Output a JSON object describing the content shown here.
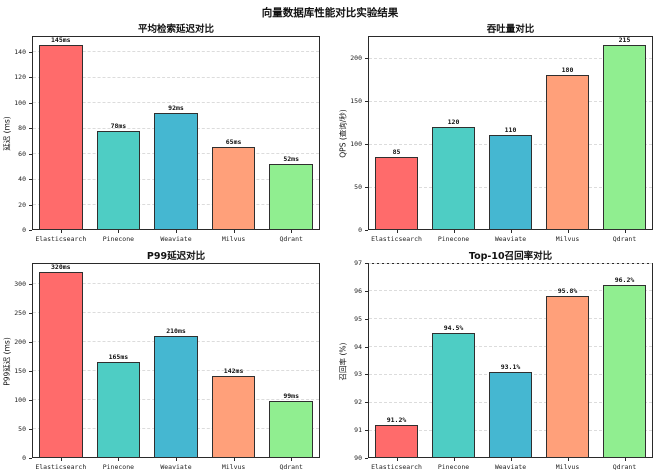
{
  "figure_title": "向量数据库性能对比实验结果",
  "palette": {
    "elasticsearch": "#FF6B6B",
    "pinecone": "#4ECDC4",
    "weaviate": "#45B7D1",
    "milvus": "#FFA07A",
    "qdrant": "#90EE90",
    "bar_edge": "#2f2f2f",
    "grid": "#dcdcdc"
  },
  "chart_data": [
    {
      "type": "bar",
      "title": "平均检索延迟对比",
      "ylabel": "延迟 (ms)",
      "categories": [
        "Elasticsearch",
        "Pinecone",
        "Weaviate",
        "Milvus",
        "Qdrant"
      ],
      "values": [
        145,
        78,
        92,
        65,
        52
      ],
      "value_labels": [
        "145ms",
        "78ms",
        "92ms",
        "65ms",
        "52ms"
      ],
      "bar_colors": [
        "#FF6B6B",
        "#4ECDC4",
        "#45B7D1",
        "#FFA07A",
        "#90EE90"
      ],
      "ylim": [
        0,
        152.25
      ],
      "yticks": [
        0,
        20,
        40,
        60,
        80,
        100,
        120,
        140
      ],
      "grid": "horizontal-dashed",
      "legend": "none"
    },
    {
      "type": "bar",
      "title": "吞吐量对比",
      "ylabel": "QPS (查询/秒)",
      "categories": [
        "Elasticsearch",
        "Pinecone",
        "Weaviate",
        "Milvus",
        "Qdrant"
      ],
      "values": [
        85,
        120,
        110,
        180,
        215
      ],
      "value_labels": [
        "85",
        "120",
        "110",
        "180",
        "215"
      ],
      "bar_colors": [
        "#FF6B6B",
        "#4ECDC4",
        "#45B7D1",
        "#FFA07A",
        "#90EE90"
      ],
      "ylim": [
        0,
        225.75
      ],
      "yticks": [
        0,
        50,
        100,
        150,
        200
      ],
      "grid": "horizontal-dashed",
      "legend": "none"
    },
    {
      "type": "bar",
      "title": "P99延迟对比",
      "ylabel": "P99延迟 (ms)",
      "categories": [
        "Elasticsearch",
        "Pinecone",
        "Weaviate",
        "Milvus",
        "Qdrant"
      ],
      "values": [
        320,
        165,
        210,
        142,
        99
      ],
      "value_labels": [
        "320ms",
        "165ms",
        "210ms",
        "142ms",
        "99ms"
      ],
      "bar_colors": [
        "#FF6B6B",
        "#4ECDC4",
        "#45B7D1",
        "#FFA07A",
        "#90EE90"
      ],
      "ylim": [
        0,
        336
      ],
      "yticks": [
        0,
        50,
        100,
        150,
        200,
        250,
        300
      ],
      "grid": "horizontal-dashed",
      "legend": "none"
    },
    {
      "type": "bar",
      "title": "Top-10召回率对比",
      "ylabel": "召回率 (%)",
      "categories": [
        "Elasticsearch",
        "Pinecone",
        "Weaviate",
        "Milvus",
        "Qdrant"
      ],
      "values": [
        91.2,
        94.5,
        93.1,
        95.8,
        96.2
      ],
      "value_labels": [
        "91.2%",
        "94.5%",
        "93.1%",
        "95.8%",
        "96.2%"
      ],
      "bar_colors": [
        "#FF6B6B",
        "#4ECDC4",
        "#45B7D1",
        "#FFA07A",
        "#90EE90"
      ],
      "ylim": [
        90,
        97
      ],
      "yticks": [
        90,
        91,
        92,
        93,
        94,
        95,
        96,
        97
      ],
      "grid": "horizontal-dashed",
      "legend": "none"
    }
  ]
}
